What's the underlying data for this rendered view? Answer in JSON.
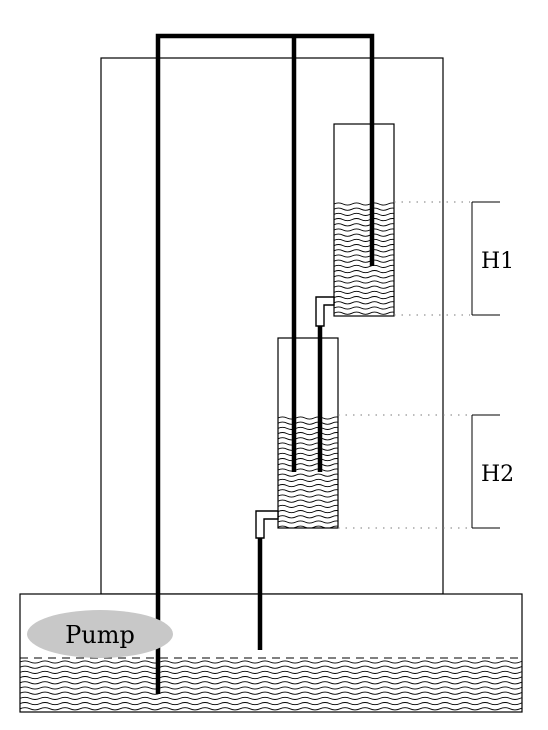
{
  "labels": {
    "h1": "H1",
    "h2": "H2",
    "pump": "Pump"
  },
  "colors": {
    "background": "#ffffff",
    "line": "#000000",
    "pump_fill": "#c8c8c8",
    "dotted": "#7a7a7a"
  }
}
